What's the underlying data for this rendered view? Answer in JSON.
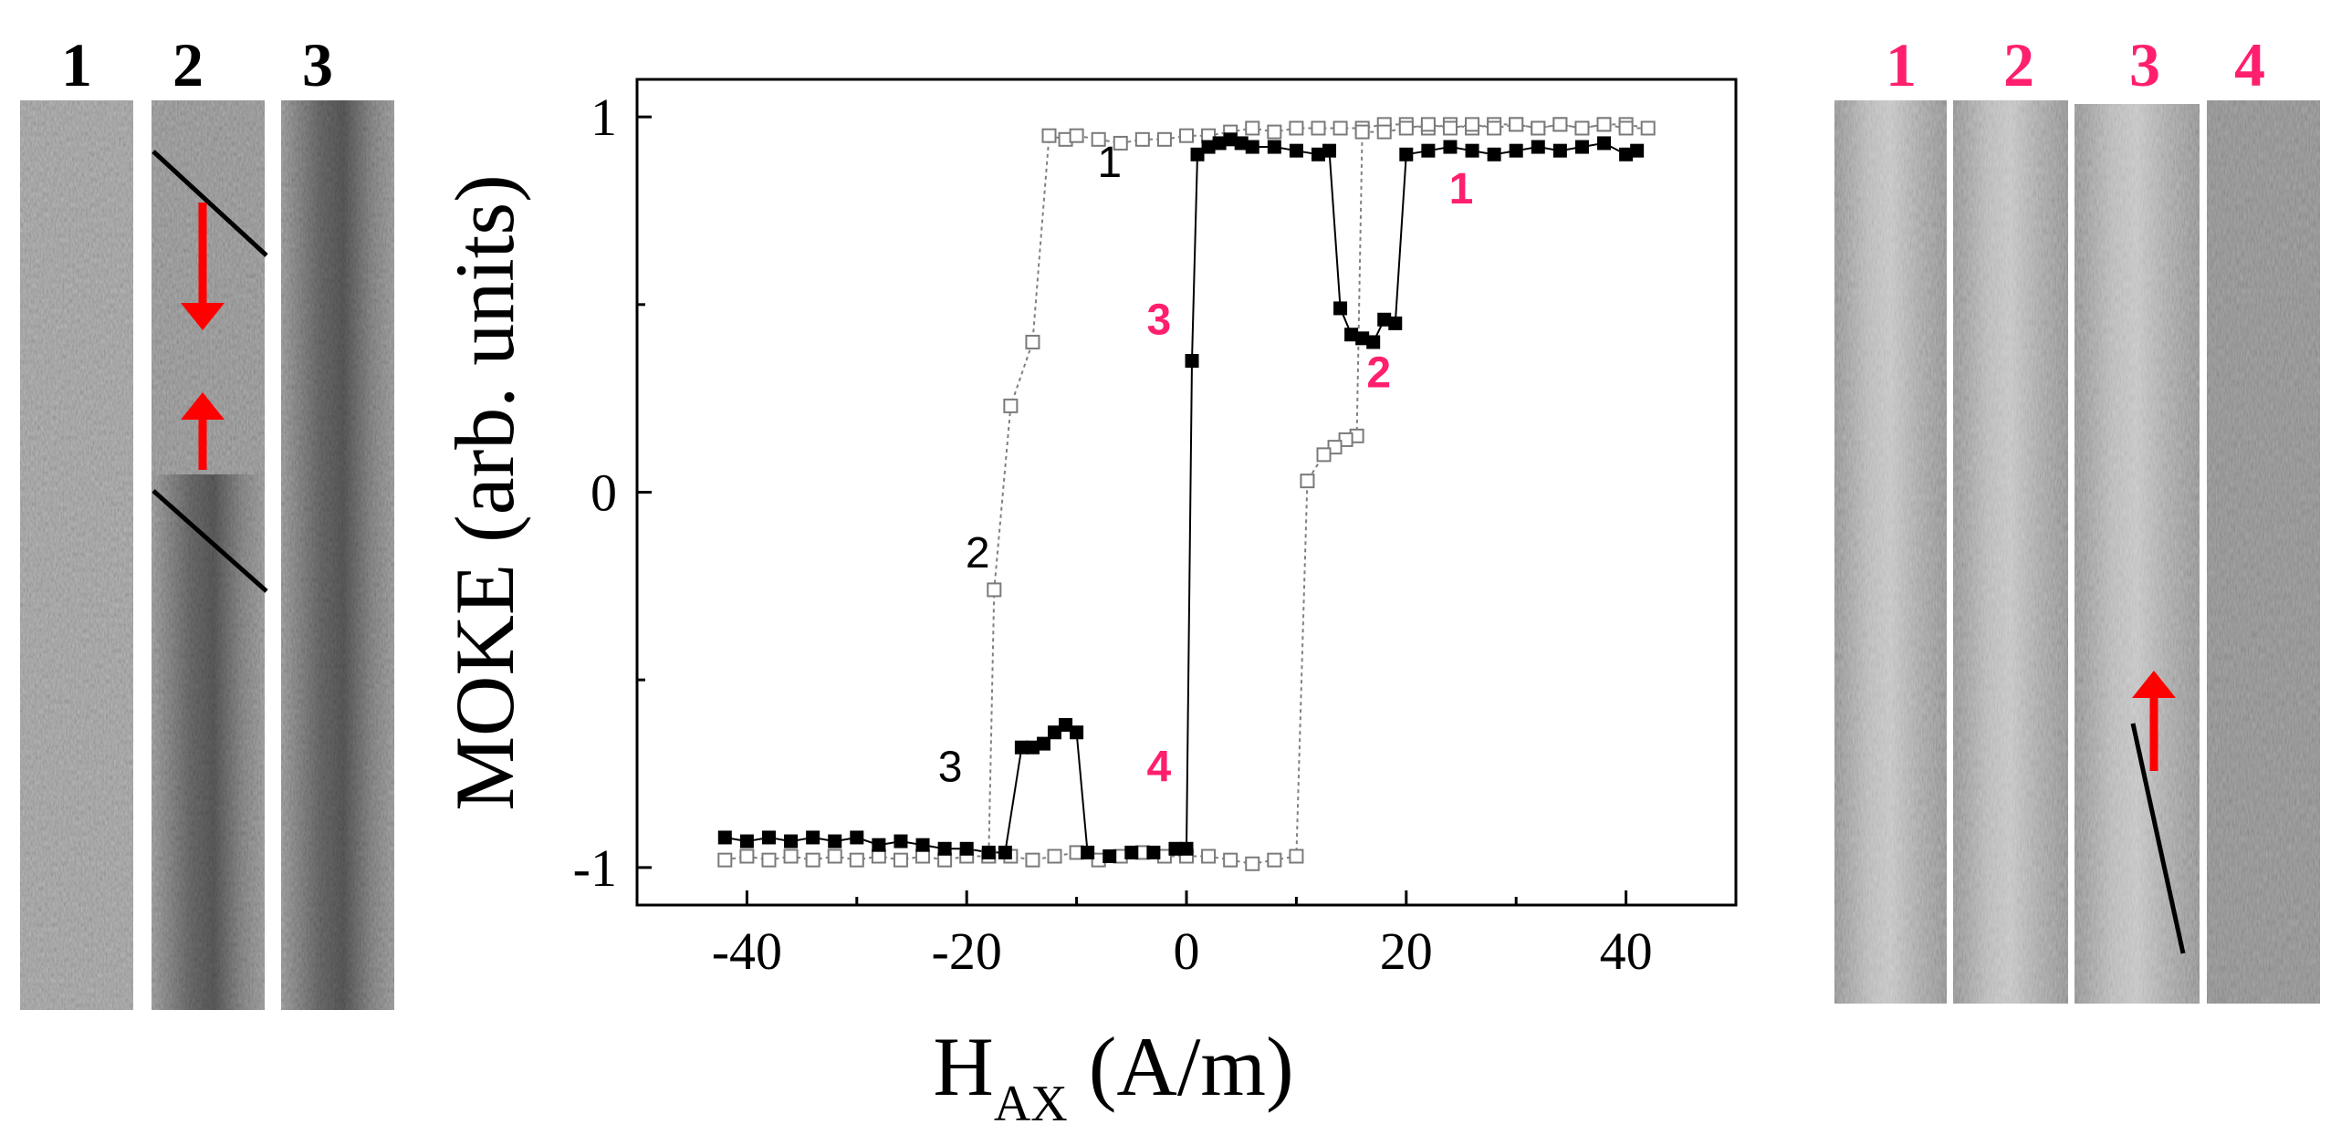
{
  "left_panel": {
    "labels": [
      "1",
      "2",
      "3"
    ],
    "label_color": "#000000",
    "arrow_color": "#ff0000"
  },
  "right_panel": {
    "labels": [
      "1",
      "2",
      "3",
      "4"
    ],
    "label_color": "#ff1f6e",
    "arrow_color": "#ff0000"
  },
  "chart_data": {
    "type": "scatter",
    "xlabel_main": "H",
    "xlabel_sub": "AX",
    "xlabel_unit": " (A/m)",
    "ylabel": "MOKE (arb. units)",
    "xlim": [
      -50,
      50
    ],
    "ylim": [
      -1.1,
      1.1
    ],
    "xticks": [
      -40,
      -20,
      0,
      20,
      40
    ],
    "yticks": [
      -1,
      0,
      1
    ],
    "grid": false,
    "series": [
      {
        "marker": "open-square",
        "line": "dotted",
        "color": "#808080",
        "points": [
          [
            -42,
            -0.98
          ],
          [
            -40,
            -0.97
          ],
          [
            -38,
            -0.98
          ],
          [
            -36,
            -0.97
          ],
          [
            -34,
            -0.98
          ],
          [
            -32,
            -0.97
          ],
          [
            -30,
            -0.98
          ],
          [
            -28,
            -0.97
          ],
          [
            -26,
            -0.98
          ],
          [
            -24,
            -0.97
          ],
          [
            -22,
            -0.98
          ],
          [
            -20,
            -0.97
          ],
          [
            -18,
            -0.97
          ],
          [
            -17.5,
            -0.26
          ],
          [
            -16,
            0.23
          ],
          [
            -14,
            0.4
          ],
          [
            -12.5,
            0.95
          ],
          [
            -11,
            0.94
          ],
          [
            -10,
            0.95
          ],
          [
            -8,
            0.94
          ],
          [
            -6,
            0.93
          ],
          [
            -4,
            0.94
          ],
          [
            -2,
            0.94
          ],
          [
            0,
            0.95
          ],
          [
            2,
            0.95
          ],
          [
            4,
            0.96
          ],
          [
            6,
            0.97
          ],
          [
            8,
            0.96
          ],
          [
            10,
            0.97
          ],
          [
            12,
            0.97
          ],
          [
            14,
            0.97
          ],
          [
            16,
            0.97
          ],
          [
            18,
            0.98
          ],
          [
            20,
            0.98
          ],
          [
            22,
            0.97
          ],
          [
            24,
            0.98
          ],
          [
            26,
            0.97
          ],
          [
            28,
            0.98
          ],
          [
            30,
            0.98
          ],
          [
            32,
            0.97
          ],
          [
            34,
            0.98
          ],
          [
            36,
            0.97
          ],
          [
            38,
            0.98
          ],
          [
            40,
            0.98
          ],
          [
            42,
            0.97
          ],
          [
            40,
            0.97
          ],
          [
            38,
            0.98
          ],
          [
            36,
            0.97
          ],
          [
            34,
            0.98
          ],
          [
            32,
            0.97
          ],
          [
            30,
            0.98
          ],
          [
            28,
            0.97
          ],
          [
            26,
            0.98
          ],
          [
            24,
            0.97
          ],
          [
            22,
            0.98
          ],
          [
            20,
            0.97
          ],
          [
            18,
            0.96
          ],
          [
            16,
            0.96
          ],
          [
            15.5,
            0.15
          ],
          [
            14.5,
            0.14
          ],
          [
            13.5,
            0.12
          ],
          [
            12.5,
            0.1
          ],
          [
            11,
            0.03
          ],
          [
            10,
            -0.97
          ],
          [
            8,
            -0.98
          ],
          [
            6,
            -0.99
          ],
          [
            4,
            -0.98
          ],
          [
            2,
            -0.97
          ],
          [
            0,
            -0.97
          ],
          [
            -2,
            -0.97
          ],
          [
            -4,
            -0.96
          ],
          [
            -6,
            -0.97
          ],
          [
            -8,
            -0.98
          ],
          [
            -10,
            -0.96
          ],
          [
            -12,
            -0.97
          ],
          [
            -14,
            -0.98
          ],
          [
            -16,
            -0.97
          ],
          [
            -18,
            -0.97
          ]
        ]
      },
      {
        "marker": "filled-square",
        "line": "solid",
        "color": "#000000",
        "points": [
          [
            -42,
            -0.92
          ],
          [
            -40,
            -0.93
          ],
          [
            -38,
            -0.92
          ],
          [
            -36,
            -0.93
          ],
          [
            -34,
            -0.92
          ],
          [
            -32,
            -0.93
          ],
          [
            -30,
            -0.92
          ],
          [
            -28,
            -0.94
          ],
          [
            -26,
            -0.93
          ],
          [
            -24,
            -0.94
          ],
          [
            -22,
            -0.95
          ],
          [
            -20,
            -0.95
          ],
          [
            -18,
            -0.96
          ],
          [
            -16.5,
            -0.96
          ],
          [
            -15,
            -0.68
          ],
          [
            -14,
            -0.68
          ],
          [
            -13,
            -0.67
          ],
          [
            -12,
            -0.64
          ],
          [
            -11,
            -0.62
          ],
          [
            -10,
            -0.64
          ],
          [
            -9,
            -0.96
          ],
          [
            -7,
            -0.97
          ],
          [
            -5,
            -0.96
          ],
          [
            -3,
            -0.96
          ],
          [
            -1,
            -0.95
          ],
          [
            0,
            -0.95
          ],
          [
            0.5,
            0.35
          ],
          [
            1,
            0.9
          ],
          [
            2,
            0.92
          ],
          [
            3,
            0.93
          ],
          [
            4,
            0.94
          ],
          [
            5,
            0.93
          ],
          [
            6,
            0.92
          ],
          [
            8,
            0.92
          ],
          [
            10,
            0.91
          ],
          [
            12,
            0.9
          ],
          [
            13,
            0.91
          ],
          [
            14,
            0.49
          ],
          [
            15,
            0.42
          ],
          [
            16,
            0.41
          ],
          [
            17,
            0.4
          ],
          [
            18,
            0.46
          ],
          [
            19,
            0.45
          ],
          [
            20,
            0.9
          ],
          [
            22,
            0.91
          ],
          [
            24,
            0.92
          ],
          [
            26,
            0.91
          ],
          [
            28,
            0.9
          ],
          [
            30,
            0.91
          ],
          [
            32,
            0.92
          ],
          [
            34,
            0.91
          ],
          [
            36,
            0.92
          ],
          [
            38,
            0.93
          ],
          [
            40,
            0.9
          ],
          [
            41,
            0.91
          ]
        ]
      }
    ],
    "annotations": [
      {
        "text": "1",
        "x": -7,
        "y": 0.84,
        "color": "#000000"
      },
      {
        "text": "2",
        "x": -19,
        "y": -0.2,
        "color": "#000000"
      },
      {
        "text": "3",
        "x": -21.5,
        "y": -0.77,
        "color": "#000000"
      },
      {
        "text": "1",
        "x": 25,
        "y": 0.77,
        "color": "#ff1f6e"
      },
      {
        "text": "2",
        "x": 17.5,
        "y": 0.28,
        "color": "#ff1f6e"
      },
      {
        "text": "3",
        "x": -2.5,
        "y": 0.42,
        "color": "#ff1f6e"
      },
      {
        "text": "4",
        "x": -2.5,
        "y": -0.77,
        "color": "#ff1f6e"
      }
    ]
  }
}
